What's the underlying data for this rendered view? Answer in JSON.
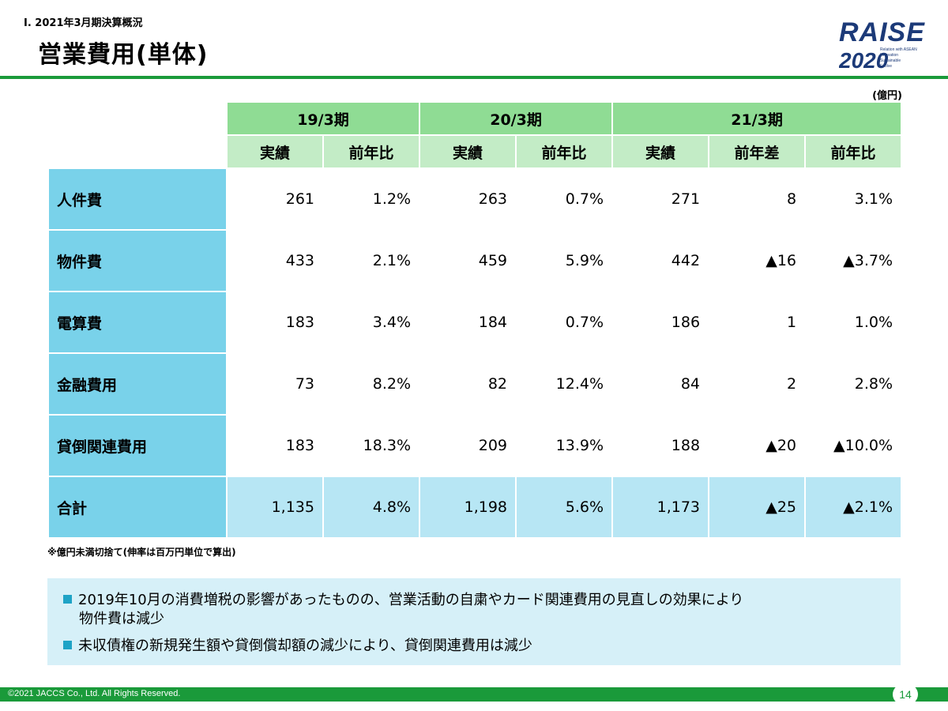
{
  "header": {
    "section": "Ⅰ. 2021年3月期決算概況",
    "title": "営業費用(単体)",
    "logo": {
      "top_text": "RAISE",
      "year": "2020",
      "tagline": [
        "Relation with ASEAN",
        "Innovation",
        "Sustainable",
        "Evolve"
      ]
    }
  },
  "unit": "(億円)",
  "table": {
    "periods": [
      "19/3期",
      "20/3期",
      "21/3期"
    ],
    "columns": [
      "実績",
      "前年比",
      "実績",
      "前年比",
      "実績",
      "前年差",
      "前年比"
    ],
    "rows": [
      {
        "label": "人件費",
        "values": [
          "261",
          "1.2%",
          "263",
          "0.7%",
          "271",
          "8",
          "3.1%"
        ]
      },
      {
        "label": "物件費",
        "values": [
          "433",
          "2.1%",
          "459",
          "5.9%",
          "442",
          "▲16",
          "▲3.7%"
        ]
      },
      {
        "label": "電算費",
        "values": [
          "183",
          "3.4%",
          "184",
          "0.7%",
          "186",
          "1",
          "1.0%"
        ]
      },
      {
        "label": "金融費用",
        "values": [
          "73",
          "8.2%",
          "82",
          "12.4%",
          "84",
          "2",
          "2.8%"
        ]
      },
      {
        "label": "貸倒関連費用",
        "values": [
          "183",
          "18.3%",
          "209",
          "13.9%",
          "188",
          "▲20",
          "▲10.0%"
        ]
      },
      {
        "label": "合計",
        "values": [
          "1,135",
          "4.8%",
          "1,198",
          "5.6%",
          "1,173",
          "▲25",
          "▲2.1%"
        ]
      }
    ]
  },
  "footnote": "※億円未満切捨て(伸率は百万円単位で算出)",
  "summary": {
    "bullet1_line1": "2019年10月の消費増税の影響があったものの、営業活動の自粛やカード関連費用の見直しの効果により",
    "bullet1_line2": "物件費は減少",
    "bullet2": "未収債権の新規発生額や貸倒償却額の減少により、貸倒関連費用は減少"
  },
  "footer": {
    "copyright": "©2021 JACCS Co., Ltd. All Rights Reserved.",
    "page": "14"
  },
  "colors": {
    "brand_green": "#1a9a3a",
    "period_header": "#8fdc94",
    "column_header": "#c3ecc6",
    "row_header": "#79d2ea",
    "total_row": "#b7e6f4",
    "summary_bg": "#d6f0f8",
    "logo_navy": "#1c3a78"
  }
}
